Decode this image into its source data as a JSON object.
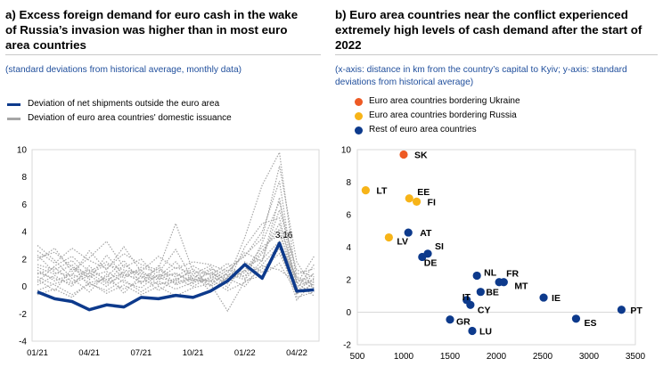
{
  "chart_data": [
    {
      "id": "a",
      "type": "line",
      "title": "a) Excess foreign demand for euro cash in the wake of Russia’s invasion was higher than in most euro area countries",
      "subtitle": "(standard deviations from historical average, monthly data)",
      "x_tick_labels": [
        "01/21",
        "04/21",
        "07/21",
        "10/21",
        "01/22",
        "04/22"
      ],
      "x_months": 20,
      "ylim": [
        -4,
        10
      ],
      "yticks": [
        -4,
        -2,
        0,
        2,
        4,
        6,
        8,
        10
      ],
      "legend_placement": "top-left",
      "series": [
        {
          "name": "Deviation of net shipments outside the euro area",
          "color": "#0d3a8c",
          "style": "solid",
          "values": [
            -0.4,
            -0.9,
            -1.1,
            -1.7,
            -1.35,
            -1.5,
            -0.8,
            -0.9,
            -0.65,
            -0.8,
            -0.35,
            0.4,
            1.6,
            0.6,
            3.16,
            -0.35,
            -0.25
          ]
        },
        {
          "name": "Deviation of euro area countries' domestic issuance",
          "color": "#a6a6a6",
          "style": "dotted",
          "lines": [
            [
              3.0,
              1.9,
              0.6,
              1.2,
              0.5,
              1.0,
              0.3,
              0.8,
              0.9,
              0.4,
              1.0,
              0.6,
              0.8,
              1.5,
              1.2,
              0.3,
              0.9
            ],
            [
              2.1,
              2.5,
              1.4,
              0.9,
              1.6,
              1.2,
              1.0,
              0.7,
              1.8,
              0.4,
              0.6,
              1.4,
              2.2,
              4.0,
              7.7,
              -0.6,
              1.0
            ],
            [
              1.6,
              1.2,
              1.9,
              0.5,
              2.3,
              0.8,
              0.6,
              1.3,
              4.6,
              1.1,
              0.9,
              0.5,
              3.6,
              7.4,
              9.8,
              0.2,
              2.2
            ],
            [
              1.2,
              0.4,
              0.9,
              0.3,
              0.5,
              -0.2,
              0.4,
              0.2,
              0.3,
              0.6,
              0.1,
              1.0,
              2.5,
              1.8,
              6.5,
              -0.8,
              -0.4
            ],
            [
              0.9,
              1.4,
              0.3,
              1.0,
              0.2,
              0.8,
              1.2,
              0.1,
              0.6,
              0.0,
              0.7,
              0.3,
              1.2,
              2.9,
              3.8,
              0.6,
              0.1
            ],
            [
              0.5,
              -0.3,
              1.3,
              0.7,
              1.1,
              0.3,
              -0.1,
              0.9,
              0.2,
              0.8,
              0.3,
              0.9,
              0.5,
              1.9,
              5.6,
              1.2,
              0.7
            ],
            [
              0.1,
              0.8,
              0.0,
              1.5,
              0.3,
              1.6,
              0.7,
              0.5,
              1.0,
              0.2,
              1.2,
              -0.1,
              1.8,
              1.0,
              2.8,
              -1.0,
              0.4
            ],
            [
              -0.3,
              0.2,
              0.6,
              -0.4,
              0.9,
              -0.5,
              0.8,
              -0.3,
              0.5,
              1.1,
              -0.4,
              0.7,
              1.0,
              2.4,
              4.6,
              0.3,
              -0.7
            ],
            [
              2.6,
              1.7,
              2.8,
              1.9,
              1.3,
              2.4,
              1.6,
              1.2,
              0.7,
              1.5,
              0.8,
              1.7,
              0.6,
              3.2,
              6.2,
              0.9,
              1.3
            ],
            [
              1.9,
              2.8,
              1.1,
              2.1,
              3.3,
              1.4,
              2.0,
              0.6,
              1.4,
              0.9,
              1.5,
              0.2,
              2.9,
              4.6,
              5.0,
              0.0,
              0.5
            ],
            [
              0.7,
              0.1,
              -0.6,
              0.2,
              -0.3,
              0.5,
              -0.4,
              0.4,
              -0.2,
              0.3,
              0.5,
              -0.3,
              0.3,
              1.3,
              2.4,
              -0.2,
              1.6
            ],
            [
              1.4,
              0.9,
              1.6,
              0.0,
              0.7,
              1.9,
              0.2,
              1.5,
              0.1,
              0.6,
              1.3,
              0.8,
              1.5,
              2.0,
              3.3,
              0.5,
              -0.1
            ],
            [
              -0.6,
              -0.2,
              -0.8,
              0.3,
              -0.5,
              0.1,
              -0.6,
              0.0,
              -0.7,
              -0.1,
              0.2,
              -1.8,
              0.4,
              0.8,
              1.7,
              -0.5,
              0.2
            ],
            [
              2.3,
              1.0,
              0.8,
              2.6,
              1.2,
              2.9,
              1.1,
              2.2,
              1.3,
              1.8,
              1.6,
              1.1,
              2.3,
              3.5,
              8.8,
              1.8,
              -0.2
            ],
            [
              0.3,
              1.5,
              2.2,
              1.1,
              1.8,
              0.6,
              1.4,
              1.0,
              2.7,
              0.5,
              0.4,
              1.2,
              1.1,
              2.6,
              4.2,
              -0.3,
              0.6
            ],
            [
              1.0,
              0.6,
              0.2,
              0.8,
              0.0,
              1.1,
              0.9,
              0.6,
              0.4,
              1.3,
              0.0,
              0.6,
              0.0,
              1.6,
              3.0,
              0.7,
              0.3
            ]
          ]
        }
      ],
      "annotation": {
        "label": "3.16",
        "x_index": 14,
        "y": 3.16
      }
    },
    {
      "id": "b",
      "type": "scatter",
      "title": "b) Euro area countries near the conflict experienced extremely high levels of cash demand after the start of 2022",
      "subtitle": "(x-axis: distance in km from the country’s capital to Kyiv; y-axis: standard deviations from historical average)",
      "xlim": [
        500,
        3500
      ],
      "xticks": [
        500,
        1000,
        1500,
        2000,
        2500,
        3000,
        3500
      ],
      "ylim": [
        -2,
        10
      ],
      "yticks": [
        -2,
        0,
        2,
        4,
        6,
        8,
        10
      ],
      "legend_placement": "top-left",
      "groups": [
        {
          "name": "Euro area countries bordering Ukraine",
          "color": "#ee5a24"
        },
        {
          "name": "Euro area countries bordering Russia",
          "color": "#f7b418"
        },
        {
          "name": "Rest of euro area countries",
          "color": "#0d3a8c"
        }
      ],
      "points": [
        {
          "label": "SK",
          "x": 1000,
          "y": 9.7,
          "group": 0
        },
        {
          "label": "LT",
          "x": 590,
          "y": 7.5,
          "group": 1
        },
        {
          "label": "EE",
          "x": 1060,
          "y": 7.0,
          "group": 1
        },
        {
          "label": "FI",
          "x": 1140,
          "y": 6.8,
          "group": 1
        },
        {
          "label": "LV",
          "x": 840,
          "y": 4.6,
          "group": 1
        },
        {
          "label": "AT",
          "x": 1050,
          "y": 4.9,
          "group": 2
        },
        {
          "label": "SI",
          "x": 1260,
          "y": 3.6,
          "group": 2
        },
        {
          "label": "DE",
          "x": 1200,
          "y": 3.4,
          "group": 2
        },
        {
          "label": "NL",
          "x": 1790,
          "y": 2.25,
          "group": 2
        },
        {
          "label": "FR",
          "x": 2030,
          "y": 1.85,
          "group": 2
        },
        {
          "label": "MT",
          "x": 2080,
          "y": 1.85,
          "group": 2
        },
        {
          "label": "BE",
          "x": 1830,
          "y": 1.25,
          "group": 2
        },
        {
          "label": "IT",
          "x": 1680,
          "y": 0.75,
          "group": 2
        },
        {
          "label": "CY",
          "x": 1720,
          "y": 0.45,
          "group": 2
        },
        {
          "label": "IE",
          "x": 2510,
          "y": 0.9,
          "group": 2
        },
        {
          "label": "PT",
          "x": 3350,
          "y": 0.15,
          "group": 2
        },
        {
          "label": "ES",
          "x": 2860,
          "y": -0.4,
          "group": 2
        },
        {
          "label": "GR",
          "x": 1500,
          "y": -0.45,
          "group": 2
        },
        {
          "label": "LU",
          "x": 1740,
          "y": -1.15,
          "group": 2
        }
      ]
    }
  ]
}
